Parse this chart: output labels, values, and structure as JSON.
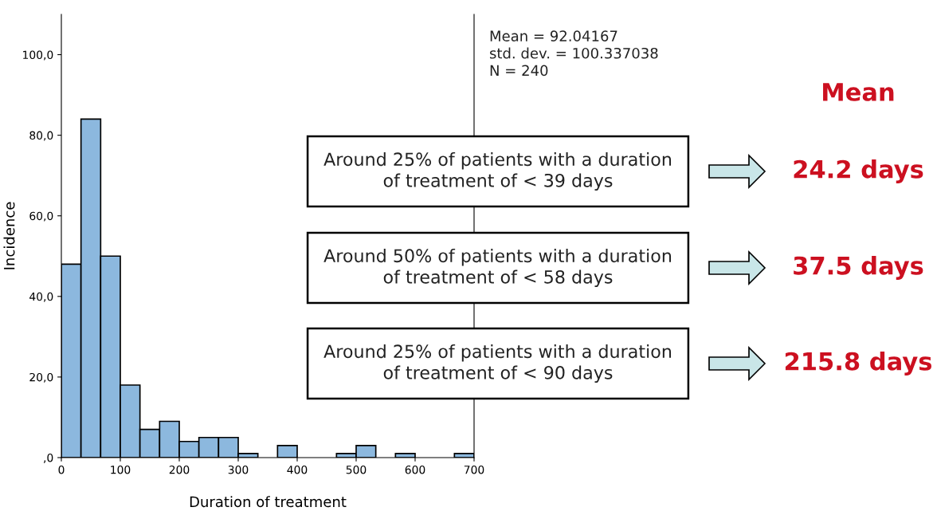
{
  "chart_data": {
    "type": "histogram",
    "bins": [
      0,
      33.33,
      66.67,
      100,
      133.33,
      166.67,
      200,
      233.33,
      266.67,
      300,
      333.33,
      366.67,
      400,
      433.33,
      466.67,
      500,
      533.33,
      566.67,
      600,
      633.33,
      666.67,
      700
    ],
    "values": [
      48,
      84,
      50,
      18,
      7,
      9,
      4,
      5,
      5,
      1,
      0,
      3,
      0,
      0,
      1,
      3,
      0,
      1,
      0,
      0,
      1
    ],
    "color": "#8cb8de",
    "xlabel": "Duration of treatment",
    "ylabel": "Incidence",
    "xlim": [
      0,
      700
    ],
    "xticks": [
      0,
      100,
      200,
      300,
      400,
      500,
      600,
      700
    ],
    "ylim": [
      0,
      110
    ],
    "yticks": [
      {
        "value": 0,
        "label": ",0"
      },
      {
        "value": 20,
        "label": "20,0"
      },
      {
        "value": 40,
        "label": "40,0"
      },
      {
        "value": 60,
        "label": "60,0"
      },
      {
        "value": 80,
        "label": "80,0"
      },
      {
        "value": 100,
        "label": "100,0"
      }
    ],
    "grid": false,
    "legend": false,
    "annotations": [
      "Mean = 92.04167\nstd. dev. = 100.337038\nN = 240",
      "Mean",
      "Around 25% of patients with a duration\nof treatment of < 39 days",
      "Around 50% of patients with a duration\nof treatment of < 58 days",
      "Around 25% of patients with a duration\nof treatment of < 90 days",
      "24.2 days",
      "37.5 days",
      "215.8 days"
    ]
  }
}
